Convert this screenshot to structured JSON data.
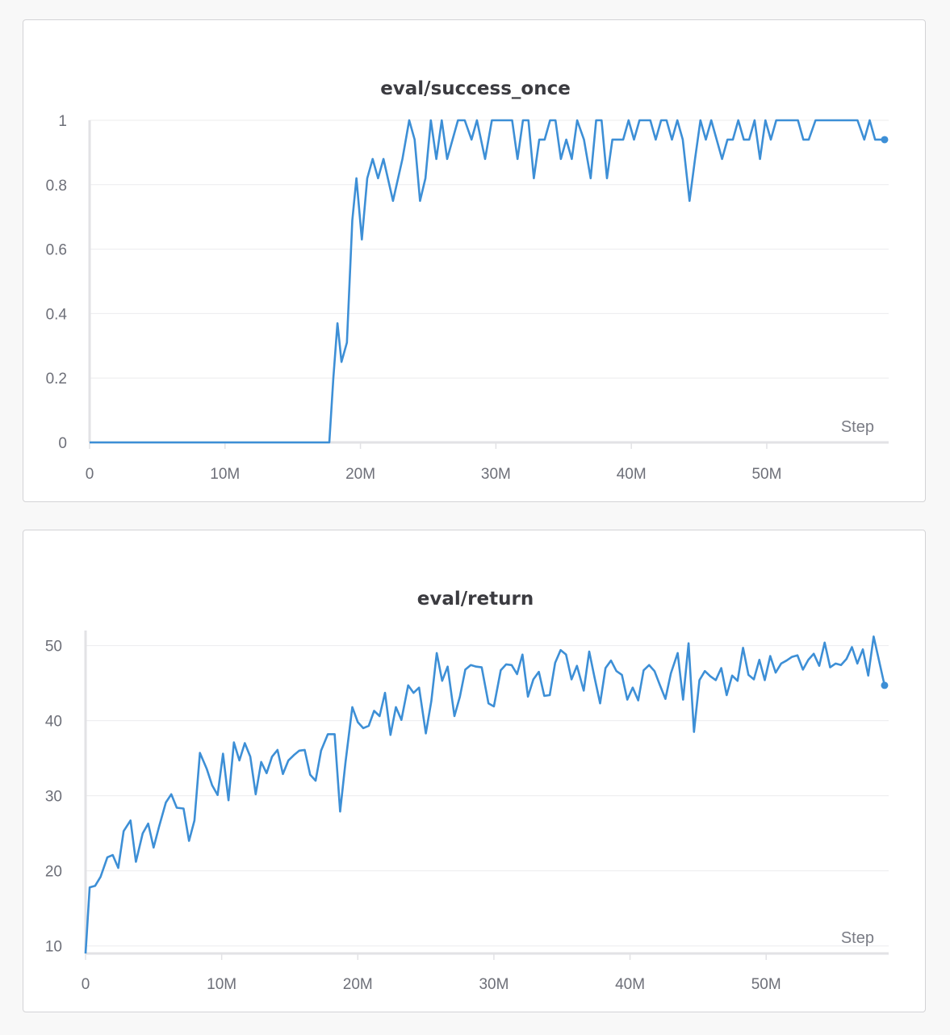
{
  "chart_data": [
    {
      "type": "line",
      "title": "eval/success_once",
      "xlabel": "Step",
      "ylabel": "",
      "xlim": [
        0,
        59000000
      ],
      "ylim": [
        0,
        1
      ],
      "x_ticks": [
        {
          "value": 0,
          "label": "0"
        },
        {
          "value": 10000000,
          "label": "10M"
        },
        {
          "value": 20000000,
          "label": "20M"
        },
        {
          "value": 30000000,
          "label": "30M"
        },
        {
          "value": 40000000,
          "label": "40M"
        },
        {
          "value": 50000000,
          "label": "50M"
        }
      ],
      "y_ticks": [
        {
          "value": 0,
          "label": "0"
        },
        {
          "value": 0.2,
          "label": "0.2"
        },
        {
          "value": 0.4,
          "label": "0.4"
        },
        {
          "value": 0.6,
          "label": "0.6"
        },
        {
          "value": 0.8,
          "label": "0.8"
        },
        {
          "value": 1,
          "label": "1"
        }
      ],
      "grid": true,
      "color": "#3d8fd6",
      "series": [
        {
          "x": [
            0,
            17700000,
            18000000,
            18300000,
            18600000,
            19000000,
            19400000,
            19700000,
            20100000,
            20500000,
            20900000,
            21300000,
            21700000,
            22400000,
            23100000,
            23600000,
            24000000,
            24400000,
            24800000,
            25200000,
            25600000,
            26000000,
            26400000,
            26800000,
            27200000,
            27700000,
            28200000,
            28600000,
            29200000,
            29700000,
            30300000,
            30700000,
            31200000,
            31600000,
            32000000,
            32400000,
            32800000,
            33200000,
            33600000,
            34000000,
            34400000,
            34800000,
            35200000,
            35600000,
            36000000,
            36500000,
            37000000,
            37400000,
            37800000,
            38200000,
            38600000,
            39000000,
            39400000,
            39800000,
            40200000,
            40600000,
            41000000,
            41400000,
            41800000,
            42200000,
            42600000,
            43000000,
            43400000,
            43800000,
            44300000,
            44700000,
            45100000,
            45500000,
            45900000,
            46300000,
            46700000,
            47100000,
            47500000,
            47900000,
            48300000,
            48700000,
            49100000,
            49500000,
            49900000,
            50300000,
            50700000,
            51100000,
            51500000,
            51900000,
            52300000,
            52700000,
            53100000,
            53600000,
            54200000,
            54700000,
            55200000,
            55700000,
            56200000,
            56700000,
            57200000,
            57600000,
            58000000,
            58300000,
            58700000
          ],
          "y": [
            0,
            0,
            0.2,
            0.37,
            0.25,
            0.31,
            0.69,
            0.82,
            0.63,
            0.82,
            0.88,
            0.82,
            0.88,
            0.75,
            0.88,
            1,
            0.94,
            0.75,
            0.82,
            1,
            0.88,
            1,
            0.88,
            0.94,
            1,
            1,
            0.94,
            1,
            0.88,
            1,
            1,
            1,
            1,
            0.88,
            1,
            1,
            0.82,
            0.94,
            0.94,
            1,
            1,
            0.88,
            0.94,
            0.88,
            1,
            0.94,
            0.82,
            1,
            1,
            0.82,
            0.94,
            0.94,
            0.94,
            1,
            0.94,
            1,
            1,
            1,
            0.94,
            1,
            1,
            0.94,
            1,
            0.94,
            0.75,
            0.88,
            1,
            0.94,
            1,
            0.94,
            0.88,
            0.94,
            0.94,
            1,
            0.94,
            0.94,
            1,
            0.88,
            1,
            0.94,
            1,
            1,
            1,
            1,
            1,
            0.94,
            0.94,
            1,
            1,
            1,
            1,
            1,
            1,
            1,
            0.94,
            1,
            0.94,
            0.94,
            0.94
          ]
        }
      ]
    },
    {
      "type": "line",
      "title": "eval/return",
      "xlabel": "Step",
      "ylabel": "",
      "xlim": [
        0,
        59000000
      ],
      "ylim": [
        9,
        52
      ],
      "x_ticks": [
        {
          "value": 0,
          "label": "0"
        },
        {
          "value": 10000000,
          "label": "10M"
        },
        {
          "value": 20000000,
          "label": "20M"
        },
        {
          "value": 30000000,
          "label": "30M"
        },
        {
          "value": 40000000,
          "label": "40M"
        },
        {
          "value": 50000000,
          "label": "50M"
        }
      ],
      "y_ticks": [
        {
          "value": 10,
          "label": "10"
        },
        {
          "value": 20,
          "label": "20"
        },
        {
          "value": 30,
          "label": "30"
        },
        {
          "value": 40,
          "label": "40"
        },
        {
          "value": 50,
          "label": "50"
        }
      ],
      "grid": true,
      "color": "#3d8fd6",
      "series": [
        {
          "x": [
            0,
            300000,
            700000,
            1100000,
            1600000,
            2000000,
            2400000,
            2800000,
            3300000,
            3700000,
            4200000,
            4600000,
            5000000,
            5400000,
            5900000,
            6300000,
            6700000,
            7200000,
            7600000,
            8000000,
            8400000,
            8900000,
            9300000,
            9700000,
            10100000,
            10500000,
            10900000,
            11300000,
            11700000,
            12100000,
            12500000,
            12900000,
            13300000,
            13700000,
            14100000,
            14500000,
            14900000,
            15300000,
            15700000,
            16100000,
            16500000,
            16900000,
            17300000,
            17800000,
            18300000,
            18700000,
            19100000,
            19600000,
            20000000,
            20400000,
            20800000,
            21200000,
            21600000,
            22000000,
            22400000,
            22800000,
            23200000,
            23700000,
            24100000,
            24500000,
            25000000,
            25400000,
            25800000,
            26200000,
            26600000,
            27100000,
            27500000,
            27900000,
            28300000,
            28700000,
            29100000,
            29600000,
            30000000,
            30500000,
            30900000,
            31300000,
            31700000,
            32100000,
            32500000,
            32900000,
            33300000,
            33700000,
            34100000,
            34500000,
            34900000,
            35300000,
            35700000,
            36100000,
            36600000,
            37000000,
            37400000,
            37800000,
            38200000,
            38600000,
            39000000,
            39400000,
            39800000,
            40200000,
            40600000,
            41000000,
            41400000,
            41800000,
            42200000,
            42600000,
            43000000,
            43500000,
            43900000,
            44300000,
            44700000,
            45100000,
            45500000,
            45900000,
            46300000,
            46700000,
            47100000,
            47500000,
            47900000,
            48300000,
            48700000,
            49100000,
            49500000,
            49900000,
            50300000,
            50700000,
            51100000,
            51500000,
            51900000,
            52300000,
            52700000,
            53100000,
            53500000,
            53900000,
            54300000,
            54700000,
            55100000,
            55500000,
            55900000,
            56300000,
            56700000,
            57100000,
            57500000,
            57900000,
            58700000
          ],
          "y": [
            9,
            17.8,
            18.0,
            19.2,
            21.8,
            22.1,
            20.4,
            25.3,
            26.7,
            21.2,
            25.0,
            26.3,
            23.1,
            25.9,
            29.1,
            30.2,
            28.4,
            28.3,
            24.0,
            26.7,
            35.7,
            33.6,
            31.4,
            30.1,
            35.6,
            29.4,
            37.1,
            34.7,
            37.0,
            35.2,
            30.2,
            34.5,
            33.0,
            35.2,
            36.1,
            32.9,
            34.7,
            35.4,
            36.0,
            36.1,
            32.8,
            32.0,
            36.0,
            38.2,
            38.2,
            27.9,
            34.5,
            41.8,
            39.8,
            39.0,
            39.3,
            41.3,
            40.6,
            43.7,
            38.1,
            41.8,
            40.1,
            44.7,
            43.7,
            44.4,
            38.3,
            42.6,
            49.0,
            45.3,
            47.2,
            40.6,
            43.2,
            46.8,
            47.4,
            47.2,
            47.1,
            42.3,
            41.9,
            46.7,
            47.5,
            47.4,
            46.2,
            48.8,
            43.2,
            45.5,
            46.5,
            43.3,
            43.4,
            47.7,
            49.4,
            48.8,
            45.5,
            47.3,
            44.0,
            49.2,
            45.7,
            42.3,
            47.0,
            48.0,
            46.6,
            46.1,
            42.8,
            44.4,
            42.7,
            46.7,
            47.4,
            46.6,
            44.7,
            42.9,
            46.3,
            49.0,
            42.8,
            50.3,
            38.5,
            45.4,
            46.6,
            45.9,
            45.4,
            47.0,
            43.4,
            46.0,
            45.3,
            49.7,
            46.1,
            45.5,
            48.1,
            45.4,
            48.6,
            46.4,
            47.6,
            48.0,
            48.5,
            48.7,
            46.8,
            48.1,
            48.9,
            47.3,
            50.4,
            47.1,
            47.6,
            47.4,
            48.2,
            49.8,
            47.6,
            49.5,
            46.0,
            51.2,
            44.7
          ]
        }
      ]
    }
  ]
}
